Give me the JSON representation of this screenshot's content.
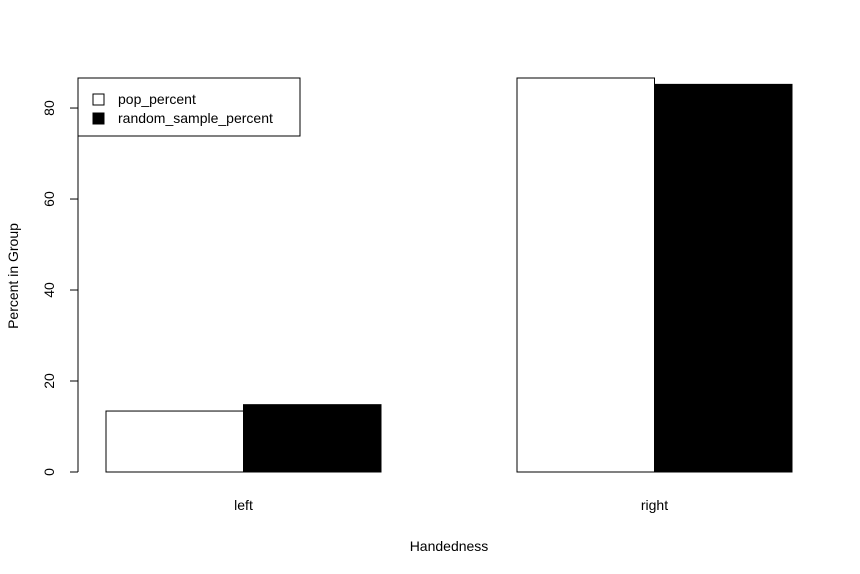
{
  "chart_data": {
    "type": "bar",
    "title": "",
    "xlabel": "Handedness",
    "ylabel": "Percent in Group",
    "categories": [
      "left",
      "right"
    ],
    "series": [
      {
        "name": "pop_percent",
        "values": [
          13.4,
          86.6
        ],
        "color": "#ffffff"
      },
      {
        "name": "random_sample_percent",
        "values": [
          14.8,
          85.2
        ],
        "color": "#000000"
      }
    ],
    "ylim": [
      0,
      86.6
    ],
    "yticks": [
      0,
      20,
      40,
      60,
      80
    ],
    "grid": false,
    "legend_position": "top-left"
  }
}
